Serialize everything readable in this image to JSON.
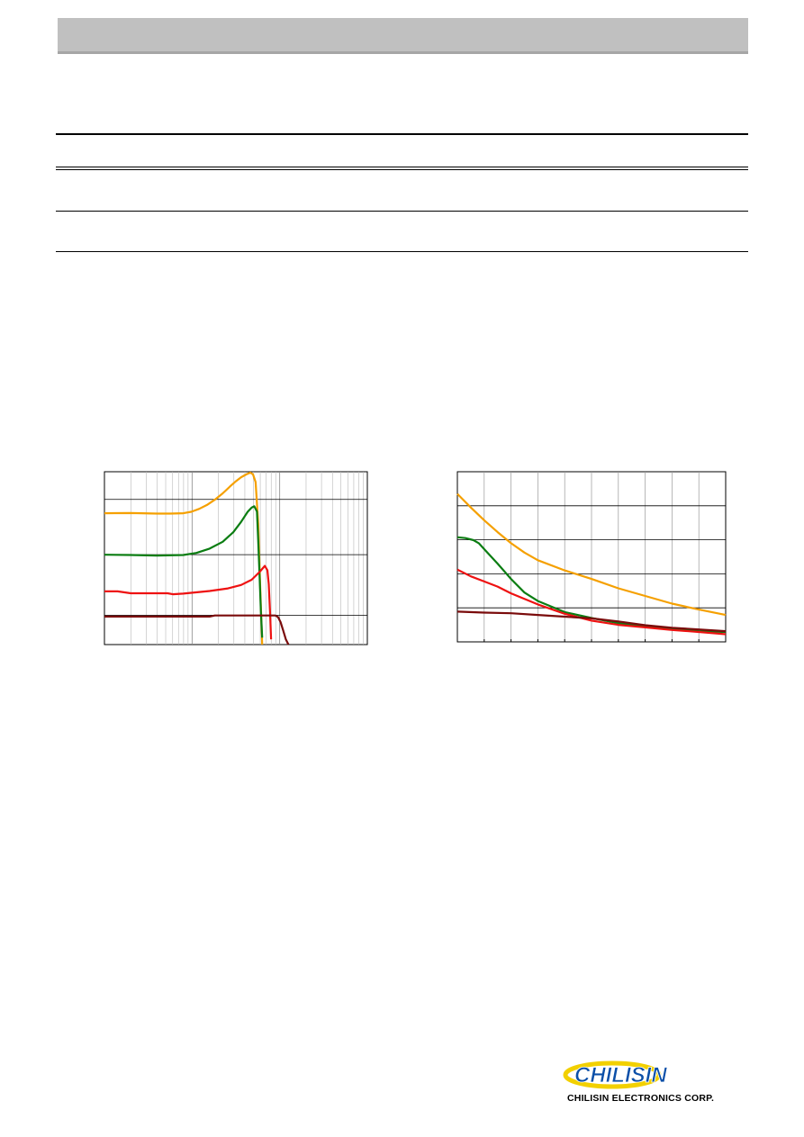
{
  "brand": {
    "company_name": "CHILISIN ELECTRONICS CORP.",
    "logo_text": "CHILISIN"
  },
  "colors": {
    "orange": "#f5a000",
    "green": "#0b7d12",
    "red": "#ee1111",
    "dark_red": "#7a0b0b",
    "grid": "#000000",
    "header_band": "#c0c0c0",
    "logo_blue": "#0b4fa8",
    "logo_yellow": "#f2d000"
  },
  "chart_data": [
    {
      "type": "line",
      "x_scale": "log",
      "grid": true,
      "series": [
        {
          "color": "#f5a000",
          "points": [
            [
              0,
              0.76
            ],
            [
              0.1,
              0.761
            ],
            [
              0.2,
              0.758
            ],
            [
              0.25,
              0.758
            ],
            [
              0.3,
              0.76
            ],
            [
              0.33,
              0.768
            ],
            [
              0.36,
              0.785
            ],
            [
              0.39,
              0.808
            ],
            [
              0.42,
              0.838
            ],
            [
              0.45,
              0.875
            ],
            [
              0.48,
              0.918
            ],
            [
              0.5,
              0.945
            ],
            [
              0.52,
              0.968
            ],
            [
              0.54,
              0.985
            ],
            [
              0.555,
              0.995
            ],
            [
              0.565,
              0.985
            ],
            [
              0.575,
              0.94
            ],
            [
              0.585,
              0.7
            ],
            [
              0.592,
              0.35
            ],
            [
              0.6,
              0.0
            ]
          ]
        },
        {
          "color": "#0b7d12",
          "points": [
            [
              0,
              0.52
            ],
            [
              0.1,
              0.518
            ],
            [
              0.2,
              0.515
            ],
            [
              0.3,
              0.518
            ],
            [
              0.35,
              0.53
            ],
            [
              0.4,
              0.555
            ],
            [
              0.45,
              0.595
            ],
            [
              0.49,
              0.65
            ],
            [
              0.52,
              0.71
            ],
            [
              0.545,
              0.768
            ],
            [
              0.56,
              0.792
            ],
            [
              0.57,
              0.8
            ],
            [
              0.58,
              0.77
            ],
            [
              0.585,
              0.6
            ],
            [
              0.59,
              0.4
            ],
            [
              0.595,
              0.2
            ],
            [
              0.6,
              0.04
            ]
          ]
        },
        {
          "color": "#ee1111",
          "points": [
            [
              0,
              0.308
            ],
            [
              0.05,
              0.308
            ],
            [
              0.1,
              0.297
            ],
            [
              0.24,
              0.297
            ],
            [
              0.26,
              0.291
            ],
            [
              0.3,
              0.295
            ],
            [
              0.4,
              0.31
            ],
            [
              0.47,
              0.325
            ],
            [
              0.52,
              0.345
            ],
            [
              0.56,
              0.375
            ],
            [
              0.59,
              0.42
            ],
            [
              0.61,
              0.455
            ],
            [
              0.62,
              0.43
            ],
            [
              0.625,
              0.35
            ],
            [
              0.63,
              0.18
            ],
            [
              0.634,
              0.03
            ]
          ]
        },
        {
          "color": "#7a0b0b",
          "points": [
            [
              0,
              0.162
            ],
            [
              0.2,
              0.162
            ],
            [
              0.4,
              0.162
            ],
            [
              0.42,
              0.168
            ],
            [
              0.6,
              0.168
            ],
            [
              0.65,
              0.168
            ],
            [
              0.66,
              0.16
            ],
            [
              0.67,
              0.13
            ],
            [
              0.68,
              0.08
            ],
            [
              0.69,
              0.03
            ],
            [
              0.7,
              0.0
            ]
          ]
        }
      ]
    },
    {
      "type": "line",
      "grid": true,
      "series": [
        {
          "color": "#f5a000",
          "points": [
            [
              0,
              0.87
            ],
            [
              0.05,
              0.79
            ],
            [
              0.1,
              0.715
            ],
            [
              0.15,
              0.645
            ],
            [
              0.2,
              0.58
            ],
            [
              0.25,
              0.525
            ],
            [
              0.3,
              0.48
            ],
            [
              0.4,
              0.42
            ],
            [
              0.5,
              0.37
            ],
            [
              0.6,
              0.315
            ],
            [
              0.7,
              0.27
            ],
            [
              0.8,
              0.225
            ],
            [
              0.9,
              0.19
            ],
            [
              1.0,
              0.158
            ]
          ]
        },
        {
          "color": "#0b7d12",
          "points": [
            [
              0,
              0.615
            ],
            [
              0.03,
              0.61
            ],
            [
              0.06,
              0.598
            ],
            [
              0.08,
              0.58
            ],
            [
              0.1,
              0.545
            ],
            [
              0.15,
              0.46
            ],
            [
              0.2,
              0.37
            ],
            [
              0.25,
              0.29
            ],
            [
              0.3,
              0.24
            ],
            [
              0.4,
              0.175
            ],
            [
              0.5,
              0.14
            ],
            [
              0.6,
              0.11
            ],
            [
              0.7,
              0.09
            ],
            [
              0.8,
              0.075
            ],
            [
              0.9,
              0.063
            ],
            [
              1.0,
              0.058
            ]
          ]
        },
        {
          "color": "#ee1111",
          "points": [
            [
              0,
              0.425
            ],
            [
              0.05,
              0.385
            ],
            [
              0.1,
              0.355
            ],
            [
              0.15,
              0.325
            ],
            [
              0.2,
              0.285
            ],
            [
              0.3,
              0.22
            ],
            [
              0.4,
              0.165
            ],
            [
              0.5,
              0.125
            ],
            [
              0.6,
              0.1
            ],
            [
              0.7,
              0.085
            ],
            [
              0.8,
              0.07
            ],
            [
              0.9,
              0.058
            ],
            [
              1.0,
              0.045
            ]
          ]
        },
        {
          "color": "#7a0b0b",
          "points": [
            [
              0,
              0.178
            ],
            [
              0.1,
              0.172
            ],
            [
              0.2,
              0.168
            ],
            [
              0.3,
              0.158
            ],
            [
              0.4,
              0.148
            ],
            [
              0.5,
              0.138
            ],
            [
              0.6,
              0.12
            ],
            [
              0.7,
              0.098
            ],
            [
              0.8,
              0.083
            ],
            [
              0.9,
              0.073
            ],
            [
              1.0,
              0.063
            ]
          ]
        }
      ]
    }
  ]
}
